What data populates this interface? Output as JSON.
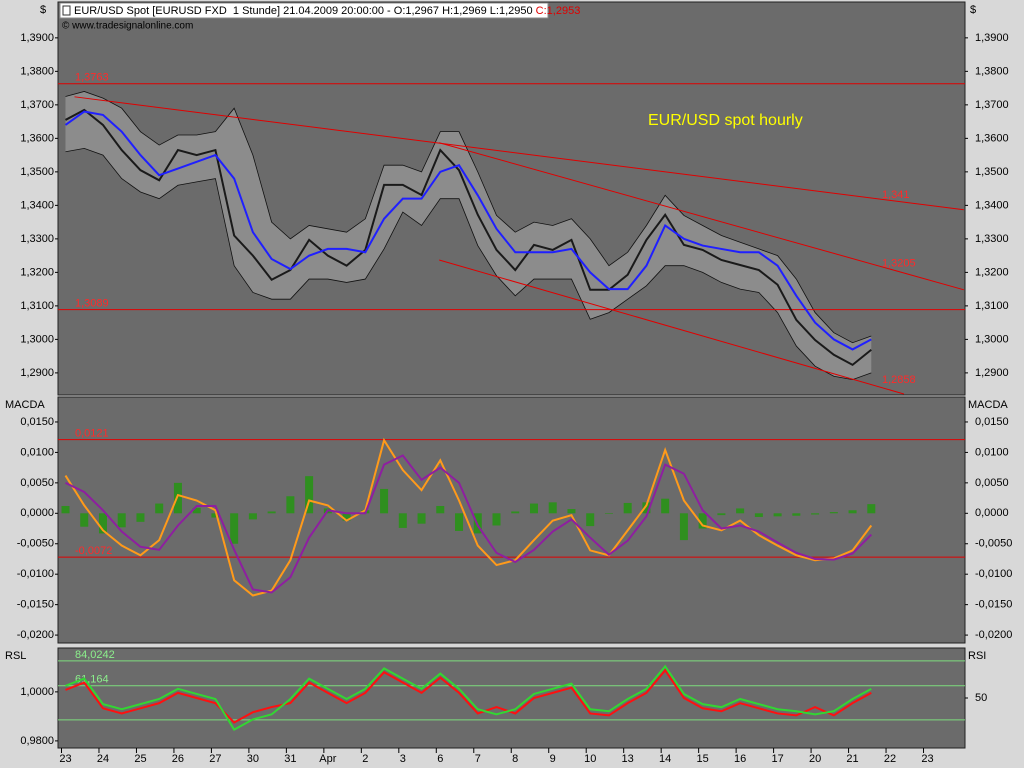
{
  "header": {
    "symbol_info": "EUR/USD Spot [EURUSD FXD  1 Stunde] 21.04.2009 20:00:00 - O:1,2967 H:1,2969 L:1,2950 ",
    "close_info": "C:1,2953",
    "copyright": "© www.tradesignalonline.com"
  },
  "chart_data": [
    {
      "type": "line",
      "y_axis_label": "$",
      "annotation": "EUR/USD spot hourly",
      "x": [
        0,
        0.5,
        1,
        1.5,
        2,
        2.5,
        3,
        3.5,
        4,
        4.5,
        5,
        5.5,
        6,
        6.5,
        7,
        7.5,
        8,
        8.5,
        9,
        9.5,
        10,
        10.5,
        11,
        11.5,
        12,
        12.5,
        13,
        13.5,
        14,
        14.5,
        15,
        15.5,
        16,
        16.5,
        17,
        17.5,
        18,
        18.5,
        19,
        19.5,
        20,
        20.5,
        21,
        21.5
      ],
      "xlim": [
        -0.2,
        24
      ],
      "ylim": [
        1.2834,
        1.4007
      ],
      "yticks": [
        {
          "value": 1.29,
          "label": "1,2900"
        },
        {
          "value": 1.3,
          "label": "1,3000"
        },
        {
          "value": 1.31,
          "label": "1,3100"
        },
        {
          "value": 1.32,
          "label": "1,3200"
        },
        {
          "value": 1.33,
          "label": "1,3300"
        },
        {
          "value": 1.34,
          "label": "1,3400"
        },
        {
          "value": 1.35,
          "label": "1,3500"
        },
        {
          "value": 1.36,
          "label": "1,3600"
        },
        {
          "value": 1.37,
          "label": "1,3700"
        },
        {
          "value": 1.38,
          "label": "1,3800"
        },
        {
          "value": 1.39,
          "label": "1,3900"
        }
      ],
      "levels": [
        {
          "value": 1.3763,
          "label": "1,3763"
        },
        {
          "value": 1.3089,
          "label": "1,3089"
        }
      ],
      "trendlines": [
        {
          "start": {
            "x": 0.24,
            "y": 1.3724
          },
          "end": {
            "x": 23.97,
            "y": 1.3387
          },
          "label": {
            "value": 1.341,
            "label": "1,341"
          }
        },
        {
          "start": {
            "x": 9.97,
            "y": 1.3587
          },
          "end": {
            "x": 23.97,
            "y": 1.3148
          },
          "label": {
            "value": 1.3205,
            "label": "1,3205"
          }
        },
        {
          "start": {
            "x": 9.97,
            "y": 1.3237
          },
          "end": {
            "x": 22.37,
            "y": 1.2837
          },
          "label": {
            "value": 1.2858,
            "label": "1,2858"
          }
        }
      ],
      "band": {
        "color": "#8c8c8c",
        "upper": [
          1.3725,
          1.374,
          1.372,
          1.369,
          1.362,
          1.358,
          1.361,
          1.361,
          1.362,
          1.369,
          1.355,
          1.335,
          1.33,
          1.334,
          1.333,
          1.332,
          1.336,
          1.352,
          1.352,
          1.35,
          1.362,
          1.362,
          1.35,
          1.337,
          1.332,
          1.335,
          1.334,
          1.336,
          1.33,
          1.322,
          1.326,
          1.334,
          1.343,
          1.337,
          1.334,
          1.331,
          1.329,
          1.327,
          1.325,
          1.318,
          1.308,
          1.302,
          1.299,
          1.301
        ],
        "lower": [
          1.356,
          1.357,
          1.355,
          1.348,
          1.344,
          1.342,
          1.346,
          1.347,
          1.348,
          1.322,
          1.314,
          1.312,
          1.312,
          1.318,
          1.318,
          1.317,
          1.318,
          1.327,
          1.338,
          1.334,
          1.342,
          1.342,
          1.328,
          1.319,
          1.313,
          1.318,
          1.318,
          1.318,
          1.306,
          1.308,
          1.312,
          1.316,
          1.322,
          1.322,
          1.32,
          1.317,
          1.315,
          1.314,
          1.308,
          1.298,
          1.292,
          1.289,
          1.288,
          1.29
        ]
      },
      "series": [
        {
          "color": "#1a1a1a",
          "values": [
            1.3655,
            1.3685,
            1.364,
            1.3565,
            1.3505,
            1.3475,
            1.3565,
            1.355,
            1.3565,
            1.331,
            1.325,
            1.3178,
            1.3207,
            1.3297,
            1.325,
            1.322,
            1.3267,
            1.3461,
            1.3461,
            1.3431,
            1.3565,
            1.3505,
            1.3372,
            1.3267,
            1.3207,
            1.3282,
            1.3267,
            1.3297,
            1.3148,
            1.3148,
            1.3193,
            1.3297,
            1.3372,
            1.3282,
            1.3267,
            1.3237,
            1.3222,
            1.3207,
            1.3163,
            1.3058,
            1.2998,
            1.2954,
            1.2924,
            1.2969
          ]
        },
        {
          "color": "#1f1fff",
          "values": [
            1.364,
            1.368,
            1.367,
            1.362,
            1.355,
            1.349,
            1.351,
            1.353,
            1.355,
            1.348,
            1.332,
            1.324,
            1.321,
            1.325,
            1.327,
            1.327,
            1.326,
            1.336,
            1.342,
            1.342,
            1.35,
            1.352,
            1.343,
            1.333,
            1.326,
            1.326,
            1.326,
            1.327,
            1.32,
            1.315,
            1.315,
            1.322,
            1.334,
            1.33,
            1.328,
            1.327,
            1.326,
            1.326,
            1.322,
            1.313,
            1.305,
            1.3,
            1.297,
            1.3
          ]
        }
      ]
    },
    {
      "type": "line",
      "y_axis_label": "MACDA",
      "x": [
        0,
        0.5,
        1,
        1.5,
        2,
        2.5,
        3,
        3.5,
        4,
        4.5,
        5,
        5.5,
        6,
        6.5,
        7,
        7.5,
        8,
        8.5,
        9,
        9.5,
        10,
        10.5,
        11,
        11.5,
        12,
        12.5,
        13,
        13.5,
        14,
        14.5,
        15,
        15.5,
        16,
        16.5,
        17,
        17.5,
        18,
        18.5,
        19,
        19.5,
        20,
        20.5,
        21,
        21.5
      ],
      "xlim": [
        -0.2,
        24
      ],
      "ylim": [
        -0.0213,
        0.0191
      ],
      "yticks": [
        {
          "value": 0.015,
          "label": "0,0150"
        },
        {
          "value": 0.01,
          "label": "0,0100"
        },
        {
          "value": 0.005,
          "label": "0,0050"
        },
        {
          "value": 0,
          "label": "0,0000"
        },
        {
          "value": -0.005,
          "label": "-0,0050"
        },
        {
          "value": -0.01,
          "label": "-0,0100"
        },
        {
          "value": -0.015,
          "label": "-0,0150"
        },
        {
          "value": -0.02,
          "label": "-0,0200"
        }
      ],
      "levels": [
        {
          "value": 0.0121,
          "label": "0,0121"
        },
        {
          "value": -0.0072,
          "label": "-0,0072"
        }
      ],
      "series": [
        {
          "type": "bar",
          "color": "#2f8f1f",
          "values": [
            0.0012,
            -0.0022,
            -0.0033,
            -0.0023,
            -0.0014,
            0.0016,
            0.005,
            0.0009,
            -0.0007,
            -0.005,
            -0.001,
            0.0003,
            0.0028,
            0.0061,
            0.0008,
            -0.0012,
            0.0005,
            0.004,
            -0.0024,
            -0.0017,
            0.0012,
            -0.0029,
            -0.0033,
            -0.002,
            0.0003,
            0.0016,
            0.0018,
            0.0007,
            -0.0021,
            -0.0001,
            0.0017,
            0.0018,
            0.0024,
            -0.0044,
            -0.0025,
            -0.0003,
            0.0008,
            -0.0006,
            -0.0005,
            -0.0004,
            -0.0002,
            0.0002,
            0.0005,
            0.0015
          ]
        },
        {
          "color": "#ff9a1a",
          "values": [
            0.0062,
            0.0013,
            -0.0028,
            -0.0053,
            -0.0069,
            -0.0044,
            0.003,
            0.0021,
            0.0005,
            -0.011,
            -0.0135,
            -0.0127,
            -0.0077,
            0.0021,
            0.0013,
            -0.0012,
            0.0005,
            0.012,
            0.0071,
            0.0038,
            0.0087,
            0.0021,
            -0.0053,
            -0.0085,
            -0.0077,
            -0.0044,
            -0.0012,
            -0.0003,
            -0.0061,
            -0.0069,
            -0.0028,
            0.0013,
            0.0104,
            0.0021,
            -0.002,
            -0.0028,
            -0.0012,
            -0.0036,
            -0.0053,
            -0.0069,
            -0.0077,
            -0.0074,
            -0.0061,
            -0.002
          ]
        },
        {
          "color": "#8e1fa0",
          "values": [
            0.005,
            0.0035,
            0.0005,
            -0.003,
            -0.0055,
            -0.006,
            -0.002,
            0.0012,
            0.0012,
            -0.006,
            -0.0125,
            -0.013,
            -0.0105,
            -0.004,
            0.0005,
            0.0,
            0.0,
            0.008,
            0.0095,
            0.0055,
            0.0075,
            0.005,
            -0.002,
            -0.0065,
            -0.008,
            -0.006,
            -0.003,
            -0.001,
            -0.004,
            -0.0068,
            -0.0045,
            -0.0005,
            0.008,
            0.0065,
            0.0005,
            -0.0025,
            -0.002,
            -0.003,
            -0.0048,
            -0.0065,
            -0.0075,
            -0.0076,
            -0.0066,
            -0.0035
          ]
        }
      ]
    },
    {
      "type": "line",
      "y_axis_label": "RSL",
      "y2_axis_label": "RSI",
      "x": [
        0,
        0.5,
        1,
        1.5,
        2,
        2.5,
        3,
        3.5,
        4,
        4.5,
        5,
        5.5,
        6,
        6.5,
        7,
        7.5,
        8,
        8.5,
        9,
        9.5,
        10,
        10.5,
        11,
        11.5,
        12,
        12.5,
        13,
        13.5,
        14,
        14.5,
        15,
        15.5,
        16,
        16.5,
        17,
        17.5,
        18,
        18.5,
        19,
        19.5,
        20,
        20.5,
        21,
        21.5
      ],
      "xlim": [
        -0.2,
        24
      ],
      "xticks": [
        {
          "value": 0,
          "label": "23"
        },
        {
          "value": 1,
          "label": "24"
        },
        {
          "value": 2,
          "label": "25"
        },
        {
          "value": 3,
          "label": "26"
        },
        {
          "value": 4,
          "label": "27"
        },
        {
          "value": 5,
          "label": "30"
        },
        {
          "value": 6,
          "label": "31"
        },
        {
          "value": 7,
          "label": "Apr"
        },
        {
          "value": 8,
          "label": "2"
        },
        {
          "value": 9,
          "label": "3"
        },
        {
          "value": 10,
          "label": "6"
        },
        {
          "value": 11,
          "label": "7"
        },
        {
          "value": 12,
          "label": "8"
        },
        {
          "value": 13,
          "label": "9"
        },
        {
          "value": 14,
          "label": "10"
        },
        {
          "value": 15,
          "label": "13"
        },
        {
          "value": 16,
          "label": "14"
        },
        {
          "value": 17,
          "label": "15"
        },
        {
          "value": 18,
          "label": "16"
        },
        {
          "value": 19,
          "label": "17"
        },
        {
          "value": 20,
          "label": "20"
        },
        {
          "value": 21,
          "label": "21"
        },
        {
          "value": 22,
          "label": "22"
        },
        {
          "value": 23,
          "label": "23"
        }
      ],
      "ylim": [
        0.9771,
        1.0179
      ],
      "yticks": [
        {
          "value": 1.0,
          "label": "1,0000"
        },
        {
          "value": 0.98,
          "label": "0,9800"
        }
      ],
      "y2lim": [
        4.2,
        95.8
      ],
      "y2ticks": [
        50
      ],
      "levels": [
        {
          "value": 84.0242,
          "label": "84,0242",
          "axis": "y2"
        },
        {
          "value": 61.164,
          "label": "61,164",
          "axis": "y2"
        },
        {
          "value": 30,
          "axis": "y2"
        }
      ],
      "series": [
        {
          "color": "#ff1010",
          "values": [
            1.0008,
            1.0038,
            0.9933,
            0.9912,
            0.9933,
            0.9954,
            0.9996,
            0.9975,
            0.9954,
            0.9875,
            0.9917,
            0.9938,
            0.9954,
            1.0038,
            0.9996,
            0.9954,
            0.9996,
            1.008,
            1.0038,
            0.9996,
            1.0058,
            0.9996,
            0.9912,
            0.9938,
            0.9912,
            0.9975,
            0.9996,
            1.0017,
            0.9912,
            0.9904,
            0.9954,
            0.9996,
            1.0088,
            0.9975,
            0.9933,
            0.9921,
            0.9954,
            0.9933,
            0.9912,
            0.9904,
            0.9938,
            0.9904,
            0.9954,
            0.9996
          ]
        },
        {
          "color": "#33d633",
          "axis": "y2",
          "values": [
            61.2,
            67.8,
            44.4,
            39.7,
            44.4,
            49.1,
            58.4,
            53.7,
            49.1,
            21.0,
            30.4,
            35.0,
            49.1,
            67.8,
            58.4,
            49.1,
            58.4,
            77.1,
            67.8,
            58.4,
            72.4,
            58.4,
            39.7,
            35.0,
            39.7,
            53.7,
            58.4,
            63.1,
            39.7,
            37.9,
            49.1,
            58.4,
            79.0,
            53.7,
            44.4,
            41.6,
            49.1,
            44.4,
            39.7,
            37.9,
            35.0,
            37.9,
            49.1,
            58.4
          ]
        }
      ]
    }
  ]
}
